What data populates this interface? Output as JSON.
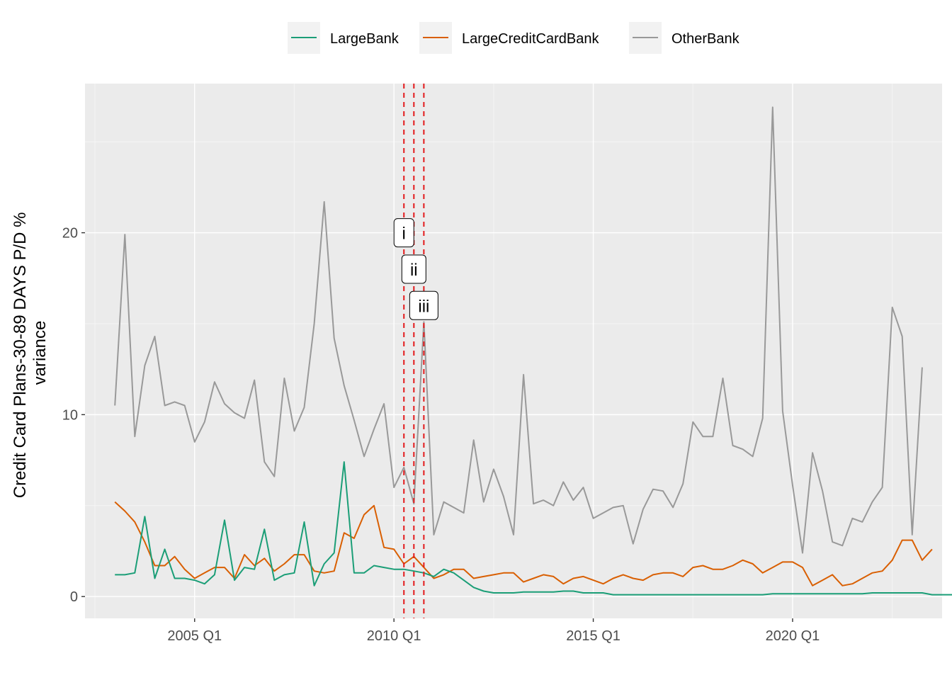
{
  "chart_data": {
    "type": "line",
    "title": "",
    "xlabel": "",
    "ylabel": "Credit Card Plans-30-89 DAYS P/D %\nvariance",
    "x_start": "2003 Q1",
    "x_ticks": [
      "2005 Q1",
      "2010 Q1",
      "2015 Q1",
      "2020 Q1"
    ],
    "y_ticks": [
      0,
      10,
      20
    ],
    "ylim": [
      -1.2,
      28.2
    ],
    "xlim": [
      "2002 Q2",
      "2023 Q4"
    ],
    "grid": true,
    "legend_position": "top",
    "colors": {
      "LargeBank": "#1b9e77",
      "LargeCreditCardBank": "#d95f02",
      "OtherBank": "#999999",
      "vline": "#e31a1c",
      "panel_bg": "#ebebeb",
      "grid_major": "#ffffff",
      "grid_minor": "#f5f5f5"
    },
    "series": [
      {
        "name": "LargeBank",
        "values": [
          1.2,
          1.2,
          1.3,
          4.4,
          1.0,
          2.6,
          1.0,
          1.0,
          0.9,
          0.7,
          1.2,
          4.2,
          0.9,
          1.6,
          1.5,
          3.7,
          0.9,
          1.2,
          1.3,
          4.1,
          0.6,
          1.8,
          2.4,
          7.4,
          1.3,
          1.3,
          1.7,
          1.6,
          1.5,
          1.5,
          1.4,
          1.3,
          1.1,
          1.5,
          1.3,
          0.9,
          0.5,
          0.3,
          0.2,
          0.2,
          0.2,
          0.25,
          0.25,
          0.25,
          0.25,
          0.3,
          0.3,
          0.2,
          0.2,
          0.2,
          0.1,
          0.1,
          0.1,
          0.1,
          0.1,
          0.1,
          0.1,
          0.1,
          0.1,
          0.1,
          0.1,
          0.1,
          0.1,
          0.1,
          0.1,
          0.1,
          0.15,
          0.15,
          0.15,
          0.15,
          0.15,
          0.15,
          0.15,
          0.15,
          0.15,
          0.15,
          0.2,
          0.2,
          0.2,
          0.2,
          0.2,
          0.2,
          0.1,
          0.1,
          0.1,
          0.1,
          0.1,
          0.1,
          0.15,
          0.15,
          0.2,
          0.2,
          0.2,
          0.2,
          0.2,
          0.3
        ]
      },
      {
        "name": "LargeCreditCardBank",
        "values": [
          5.2,
          4.7,
          4.1,
          3.0,
          1.7,
          1.7,
          2.2,
          1.5,
          1.0,
          1.3,
          1.6,
          1.6,
          1.0,
          2.3,
          1.7,
          2.1,
          1.4,
          1.8,
          2.3,
          2.3,
          1.4,
          1.3,
          1.4,
          3.5,
          3.2,
          4.5,
          5.0,
          2.7,
          2.6,
          1.8,
          2.2,
          1.6,
          1.0,
          1.2,
          1.5,
          1.5,
          1.0,
          1.1,
          1.2,
          1.3,
          1.3,
          0.8,
          1.0,
          1.2,
          1.1,
          0.7,
          1.0,
          1.1,
          0.9,
          0.7,
          1.0,
          1.2,
          1.0,
          0.9,
          1.2,
          1.3,
          1.3,
          1.1,
          1.6,
          1.7,
          1.5,
          1.5,
          1.7,
          2.0,
          1.8,
          1.3,
          1.6,
          1.9,
          1.9,
          1.6,
          0.6,
          0.9,
          1.2,
          0.6,
          0.7,
          1.0,
          1.3,
          1.4,
          2.0,
          3.1,
          3.1,
          2.0,
          2.6
        ]
      },
      {
        "name": "OtherBank",
        "values": [
          10.5,
          19.9,
          8.8,
          12.7,
          14.3,
          10.5,
          10.7,
          10.5,
          8.5,
          9.6,
          11.8,
          10.6,
          10.1,
          9.8,
          11.9,
          7.4,
          6.6,
          12.0,
          9.1,
          10.4,
          15.0,
          21.7,
          14.2,
          11.6,
          9.7,
          7.7,
          9.2,
          10.6,
          6.0,
          7.1,
          5.1,
          15.1,
          3.4,
          5.2,
          4.9,
          4.6,
          8.6,
          5.2,
          7.0,
          5.5,
          3.4,
          12.2,
          5.1,
          5.3,
          5.0,
          6.3,
          5.3,
          6.0,
          4.3,
          4.6,
          4.9,
          5.0,
          2.9,
          4.8,
          5.9,
          5.8,
          4.9,
          6.2,
          9.6,
          8.8,
          8.8,
          12.0,
          8.3,
          8.1,
          7.7,
          9.8,
          26.9,
          10.2,
          6.1,
          2.4,
          7.9,
          5.8,
          3.0,
          2.8,
          4.3,
          4.1,
          5.2,
          6.0,
          15.9,
          14.3,
          3.4,
          12.6
        ]
      }
    ],
    "annotations": [
      {
        "label": "i",
        "x": "2010 Q2",
        "y": 20.0
      },
      {
        "label": "ii",
        "x": "2010 Q3",
        "y": 18.0
      },
      {
        "label": "iii",
        "x": "2010 Q4",
        "y": 16.0
      }
    ],
    "vlines": [
      "2010 Q2",
      "2010 Q3",
      "2010 Q4"
    ]
  }
}
